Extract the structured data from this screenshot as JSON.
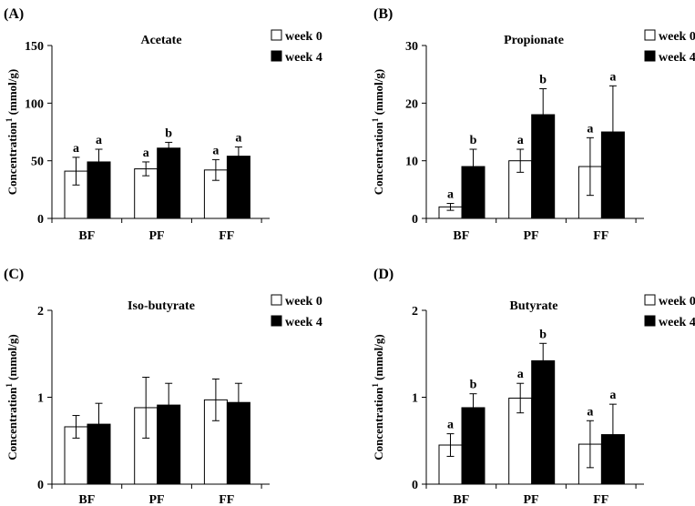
{
  "chart_data": [
    {
      "type": "bar",
      "panel": "(A)",
      "title": "Acetate",
      "ylabel": "Concentration",
      "ylabel_sup": "1",
      "ylabel_unit": "(mmol/g)",
      "ylim": [
        0,
        150
      ],
      "yticks": [
        "0",
        "50",
        "100",
        "150"
      ],
      "categories": [
        "BF",
        "PF",
        "FF"
      ],
      "series": [
        {
          "name": "week 0",
          "color": "#ffffff",
          "values": [
            41,
            43,
            42
          ],
          "errors": [
            12,
            6,
            9
          ],
          "labels": [
            "a",
            "a",
            "a"
          ]
        },
        {
          "name": "week 4",
          "color": "#000000",
          "values": [
            49,
            61,
            54
          ],
          "errors": [
            11,
            5,
            8
          ],
          "labels": [
            "a",
            "b",
            "a"
          ]
        }
      ]
    },
    {
      "type": "bar",
      "panel": "(B)",
      "title": "Propionate",
      "ylabel": "Concentration",
      "ylabel_sup": "1",
      "ylabel_unit": "(mmol/g)",
      "ylim": [
        0,
        30
      ],
      "yticks": [
        "0",
        "10",
        "20",
        "30"
      ],
      "categories": [
        "BF",
        "PF",
        "FF"
      ],
      "series": [
        {
          "name": "week 0",
          "color": "#ffffff",
          "values": [
            2,
            10,
            9
          ],
          "errors": [
            0.6,
            2,
            5
          ],
          "labels": [
            "a",
            "a",
            "a"
          ]
        },
        {
          "name": "week 4",
          "color": "#000000",
          "values": [
            9,
            18,
            15
          ],
          "errors": [
            3,
            4.5,
            8
          ],
          "labels": [
            "b",
            "b",
            "a"
          ]
        }
      ]
    },
    {
      "type": "bar",
      "panel": "(C)",
      "title": "Iso-butyrate",
      "ylabel": "Concentration",
      "ylabel_sup": "1",
      "ylabel_unit": "(mmol/g)",
      "ylim": [
        0,
        2
      ],
      "yticks": [
        "0",
        "1",
        "2"
      ],
      "categories": [
        "BF",
        "PF",
        "FF"
      ],
      "series": [
        {
          "name": "week 0",
          "color": "#ffffff",
          "values": [
            0.66,
            0.88,
            0.97
          ],
          "errors": [
            0.13,
            0.35,
            0.24
          ],
          "labels": [
            "",
            "",
            ""
          ]
        },
        {
          "name": "week 4",
          "color": "#000000",
          "values": [
            0.69,
            0.91,
            0.94
          ],
          "errors": [
            0.24,
            0.25,
            0.22
          ],
          "labels": [
            "",
            "",
            ""
          ]
        }
      ]
    },
    {
      "type": "bar",
      "panel": "(D)",
      "title": "Butyrate",
      "ylabel": "Concentration",
      "ylabel_sup": "1",
      "ylabel_unit": "(mmol/g)",
      "ylim": [
        0,
        2
      ],
      "yticks": [
        "0",
        "1",
        "2"
      ],
      "categories": [
        "BF",
        "PF",
        "FF"
      ],
      "series": [
        {
          "name": "week 0",
          "color": "#ffffff",
          "values": [
            0.45,
            0.99,
            0.46
          ],
          "errors": [
            0.13,
            0.17,
            0.27
          ],
          "labels": [
            "a",
            "a",
            "a"
          ]
        },
        {
          "name": "week 4",
          "color": "#000000",
          "values": [
            0.88,
            1.42,
            0.57
          ],
          "errors": [
            0.16,
            0.2,
            0.35
          ],
          "labels": [
            "b",
            "b",
            "a"
          ]
        }
      ]
    }
  ]
}
